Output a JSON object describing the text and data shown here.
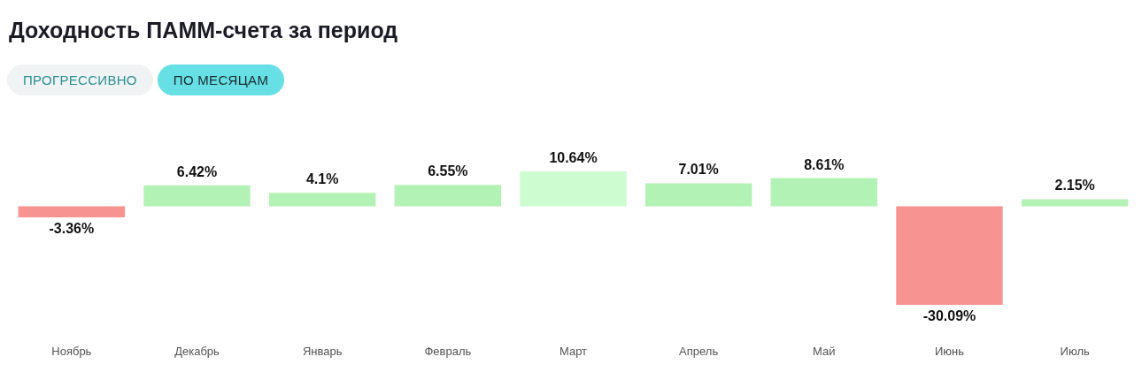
{
  "chart_data": {
    "type": "bar",
    "title": "Доходность ПАММ-счета за период",
    "annotations": [
      "ПРОГРЕССИВНО",
      "ПО МЕСЯЦАМ"
    ],
    "categories": [
      "Ноябрь",
      "Декабрь",
      "Январь",
      "Февраль",
      "Март",
      "Апрель",
      "Май",
      "Июнь",
      "Июль"
    ],
    "values": [
      -3.36,
      6.42,
      4.1,
      6.55,
      10.64,
      7.01,
      8.61,
      -30.09,
      2.15
    ],
    "value_labels": [
      "-3.36%",
      "6.42%",
      "4.1%",
      "6.55%",
      "10.64%",
      "7.01%",
      "8.61%",
      "-30.09%",
      "2.15%"
    ],
    "colors": [
      "#f79391",
      "#b3f2b5",
      "#b3f2b5",
      "#b3f2b5",
      "#ccfccf",
      "#b3f2b5",
      "#b3f2b5",
      "#f79391",
      "#b3f2b5"
    ]
  }
}
